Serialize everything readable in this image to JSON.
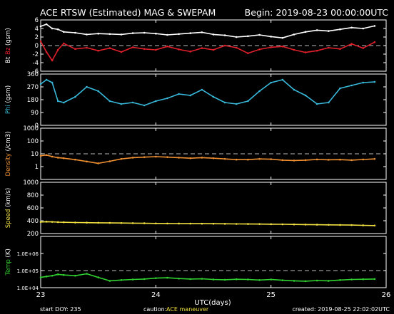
{
  "header": {
    "title": "ACE RTSW (Estimated) MAG & SWEPAM",
    "begin": "Begin: 2019-08-23 00:00:00UTC"
  },
  "footer": {
    "start_doy": "start DOY: 235",
    "caution_label": "caution:",
    "caution_value": "ACE maneuver",
    "created": "created: 2019-08-25 22:02:02UTC"
  },
  "colors": {
    "bt": "#ffffff",
    "bz": "#e0202a",
    "phi": "#38b8d8",
    "density": "#f09030",
    "speed": "#f0e040",
    "temp": "#30d030",
    "frame": "#ffffff",
    "dash": "#bbbbbb"
  },
  "chart_data": {
    "type": "line",
    "x_axis": {
      "label": "UTC(days)",
      "ticks": [
        "23",
        "24",
        "25",
        "26"
      ],
      "range": [
        23,
        26
      ]
    },
    "panels": [
      {
        "name": "mag",
        "ylabel_parts": [
          "Bt",
          "Bz",
          "(gsm)"
        ],
        "ylim": [
          -6,
          6
        ],
        "log": false,
        "ticks": [
          "6",
          "4",
          "2",
          "0",
          "-2",
          "-4",
          "-6"
        ],
        "tick_values": [
          6,
          4,
          2,
          0,
          -2,
          -4,
          -6
        ],
        "dashed": [
          0
        ],
        "series": [
          {
            "name": "Bt",
            "color_key": "bt",
            "x": [
              23.0,
              23.05,
              23.1,
              23.15,
              23.2,
              23.3,
              23.4,
              23.5,
              23.6,
              23.7,
              23.8,
              23.9,
              24.0,
              24.1,
              24.2,
              24.3,
              24.4,
              24.5,
              24.6,
              24.7,
              24.8,
              24.9,
              25.0,
              25.1,
              25.2,
              25.3,
              25.4,
              25.5,
              25.6,
              25.7,
              25.8,
              25.9
            ],
            "y": [
              4.5,
              5.0,
              4.0,
              3.8,
              3.2,
              3.0,
              2.6,
              2.8,
              2.7,
              2.6,
              2.9,
              3.0,
              2.8,
              2.5,
              2.7,
              2.9,
              3.1,
              2.6,
              2.4,
              2.0,
              2.2,
              2.5,
              2.1,
              1.8,
              2.6,
              3.2,
              3.6,
              3.4,
              3.8,
              4.2,
              4.0,
              4.6
            ]
          },
          {
            "name": "Bz",
            "color_key": "bz",
            "x": [
              23.0,
              23.05,
              23.1,
              23.15,
              23.2,
              23.3,
              23.4,
              23.5,
              23.6,
              23.7,
              23.8,
              23.9,
              24.0,
              24.1,
              24.2,
              24.3,
              24.4,
              24.5,
              24.6,
              24.7,
              24.8,
              24.9,
              25.0,
              25.1,
              25.2,
              25.3,
              25.4,
              25.5,
              25.6,
              25.7,
              25.8,
              25.9
            ],
            "y": [
              1.0,
              -1.5,
              -3.5,
              -1.0,
              0.5,
              -0.8,
              -0.5,
              -1.2,
              -0.6,
              -1.5,
              -0.4,
              -0.8,
              -1.0,
              -0.2,
              -0.9,
              -1.4,
              -0.6,
              -1.0,
              0.0,
              -0.5,
              -1.8,
              -0.9,
              -0.4,
              -0.2,
              -1.0,
              -1.6,
              -1.2,
              -0.5,
              -0.8,
              0.4,
              -0.6,
              0.8
            ]
          }
        ]
      },
      {
        "name": "phi",
        "ylabel_parts": [
          "Phi",
          "(gsm)"
        ],
        "ylim": [
          0,
          360
        ],
        "log": false,
        "ticks": [
          "360",
          "270",
          "180",
          "90",
          "0"
        ],
        "tick_values": [
          360,
          270,
          180,
          90,
          0
        ],
        "dashed": [],
        "series": [
          {
            "name": "Phi",
            "color_key": "phi",
            "x": [
              23.0,
              23.05,
              23.1,
              23.15,
              23.2,
              23.3,
              23.4,
              23.5,
              23.6,
              23.7,
              23.8,
              23.9,
              24.0,
              24.1,
              24.2,
              24.3,
              24.4,
              24.5,
              24.6,
              24.7,
              24.8,
              24.9,
              25.0,
              25.1,
              25.2,
              25.3,
              25.4,
              25.5,
              25.6,
              25.7,
              25.8,
              25.9
            ],
            "y": [
              290,
              320,
              300,
              170,
              160,
              200,
              270,
              240,
              170,
              150,
              160,
              140,
              170,
              190,
              220,
              210,
              250,
              200,
              160,
              150,
              170,
              240,
              300,
              320,
              250,
              210,
              150,
              160,
              260,
              280,
              300,
              305
            ]
          }
        ]
      },
      {
        "name": "density",
        "ylabel_parts": [
          "Density",
          "(/cm3)"
        ],
        "ylim": [
          0.1,
          1000
        ],
        "log": true,
        "ticks": [
          "1000",
          "100",
          "10",
          "1"
        ],
        "tick_values": [
          1000,
          100,
          10,
          1
        ],
        "dashed": [
          10
        ],
        "series": [
          {
            "name": "Density",
            "color_key": "density",
            "x": [
              23.0,
              23.05,
              23.1,
              23.15,
              23.2,
              23.3,
              23.4,
              23.5,
              23.6,
              23.7,
              23.8,
              23.9,
              24.0,
              24.1,
              24.2,
              24.3,
              24.4,
              24.5,
              24.6,
              24.7,
              24.8,
              24.9,
              25.0,
              25.1,
              25.2,
              25.3,
              25.4,
              25.5,
              25.6,
              25.7,
              25.8,
              25.9
            ],
            "y": [
              7,
              8,
              6,
              5,
              4.5,
              3.5,
              2.5,
              1.8,
              2.6,
              4,
              5,
              5.5,
              6,
              5.5,
              5,
              4.5,
              5,
              4.5,
              4,
              3.5,
              3.5,
              4,
              3.8,
              3.2,
              3,
              3.2,
              3.6,
              3.4,
              3.5,
              3.2,
              3.6,
              4
            ]
          }
        ]
      },
      {
        "name": "speed",
        "ylabel_parts": [
          "Speed",
          "(km/s)"
        ],
        "ylim": [
          200,
          1000
        ],
        "log": false,
        "ticks": [
          "1000",
          "800",
          "600",
          "400",
          "200"
        ],
        "tick_values": [
          1000,
          800,
          600,
          400,
          200
        ],
        "dashed": [],
        "series": [
          {
            "name": "Speed",
            "color_key": "speed",
            "x": [
              23.0,
              23.05,
              23.1,
              23.15,
              23.2,
              23.3,
              23.4,
              23.5,
              23.6,
              23.7,
              23.8,
              23.9,
              24.0,
              24.1,
              24.2,
              24.3,
              24.4,
              24.5,
              24.6,
              24.7,
              24.8,
              24.9,
              25.0,
              25.1,
              25.2,
              25.3,
              25.4,
              25.5,
              25.6,
              25.7,
              25.8,
              25.9
            ],
            "y": [
              380,
              385,
              382,
              378,
              376,
              372,
              370,
              368,
              366,
              364,
              362,
              360,
              358,
              357,
              356,
              355,
              354,
              353,
              352,
              350,
              349,
              348,
              346,
              344,
              342,
              340,
              338,
              336,
              334,
              332,
              328,
              325
            ]
          }
        ]
      },
      {
        "name": "temp",
        "ylabel_parts": [
          "Temp",
          "(K)"
        ],
        "ylim": [
          10000,
          10000000
        ],
        "log": true,
        "ticks": [
          "1.0E+06",
          "1.0E+05",
          "1.0E+04"
        ],
        "tick_values": [
          1000000,
          100000,
          10000
        ],
        "dashed": [
          100000
        ],
        "series": [
          {
            "name": "Temp",
            "color_key": "temp",
            "x": [
              23.0,
              23.05,
              23.1,
              23.15,
              23.2,
              23.3,
              23.4,
              23.5,
              23.6,
              23.7,
              23.8,
              23.9,
              24.0,
              24.1,
              24.2,
              24.3,
              24.4,
              24.5,
              24.6,
              24.7,
              24.8,
              24.9,
              25.0,
              25.1,
              25.2,
              25.3,
              25.4,
              25.5,
              25.6,
              25.7,
              25.8,
              25.9
            ],
            "y": [
              40000,
              45000,
              50000,
              60000,
              55000,
              50000,
              65000,
              40000,
              25000,
              28000,
              30000,
              32000,
              36000,
              38000,
              34000,
              32000,
              33000,
              30000,
              29000,
              31000,
              30000,
              28000,
              30000,
              27000,
              25000,
              24000,
              26000,
              25000,
              28000,
              30000,
              31000,
              32000
            ]
          }
        ]
      }
    ]
  }
}
